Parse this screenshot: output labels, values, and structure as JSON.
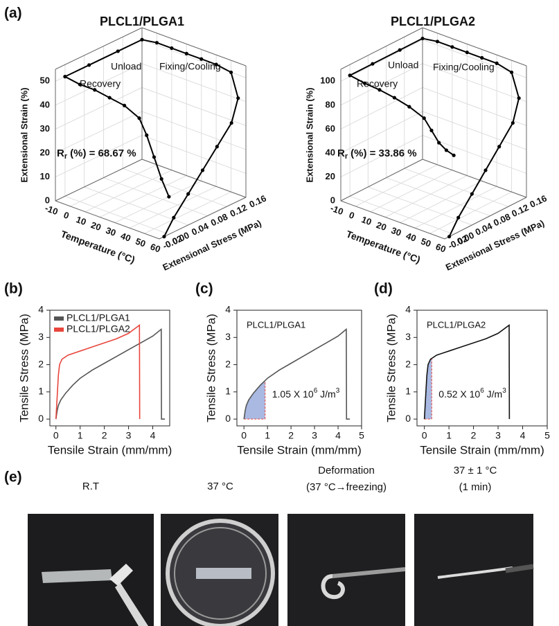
{
  "panel_labels": [
    "(a)",
    "(b)",
    "(c)",
    "(d)",
    "(e)"
  ],
  "chart_data": [
    {
      "type": "line3d",
      "title": "PLCL1/PLGA1",
      "xlabel": "Temperature (°C)",
      "ylabel": "Extensional Stress (MPa)",
      "zlabel": "Extensional Strain (%)",
      "x": [
        60,
        60,
        60,
        60,
        60,
        60,
        58,
        50,
        40,
        30,
        20,
        10,
        0,
        -10,
        -10,
        -10,
        -10,
        0,
        10,
        20,
        30,
        40,
        45,
        50,
        55,
        60
      ],
      "y": [
        -0.01,
        0.01,
        0.04,
        0.07,
        0.1,
        0.13,
        0.15,
        0.16,
        0.16,
        0.16,
        0.16,
        0.16,
        0.16,
        0.16,
        0.11,
        0.05,
        0.0,
        0.0,
        0.0,
        0.0,
        0.0,
        0.0,
        0.0,
        0.0,
        0.0,
        0.0
      ],
      "z": [
        0,
        6,
        13,
        20,
        27,
        34,
        42,
        50,
        51,
        51,
        51,
        51,
        51,
        50,
        50,
        50,
        50,
        49,
        49,
        48,
        47,
        44,
        38,
        30,
        22,
        15.7
      ],
      "xlim": [
        -10,
        60
      ],
      "xticks": [
        -10,
        0,
        10,
        20,
        30,
        40,
        50,
        60
      ],
      "ylim": [
        -0.02,
        0.16
      ],
      "yticks": [
        -0.02,
        {
          "value": 0,
          "label": "0.00"
        },
        0.04,
        0.08,
        0.12,
        0.16
      ],
      "zlim": [
        0,
        55
      ],
      "zticks": [
        0,
        10,
        20,
        30,
        40,
        50
      ],
      "color": "#000000",
      "grid": true,
      "annotations": [
        "Unload",
        "Fixing/Cooling",
        "Recovery"
      ],
      "recovery_ratio": {
        "symbol": "R",
        "subscript": "r",
        "text": "(%) = 68.67 %"
      }
    },
    {
      "type": "line3d",
      "title": "PLCL1/PLGA2",
      "xlabel": "Temperature (°C)",
      "ylabel": "Extensional Stress (MPa)",
      "zlabel": "Extensional Strain (%)",
      "x": [
        60,
        60,
        60,
        60,
        60,
        60,
        58,
        50,
        40,
        30,
        20,
        10,
        0,
        -10,
        -10,
        -10,
        -10,
        0,
        10,
        20,
        30,
        40,
        45,
        50,
        55,
        60
      ],
      "y": [
        -0.01,
        0.01,
        0.04,
        0.07,
        0.1,
        0.13,
        0.15,
        0.16,
        0.16,
        0.16,
        0.16,
        0.16,
        0.16,
        0.16,
        0.11,
        0.05,
        0.0,
        0.0,
        0.0,
        0.0,
        0.0,
        0.0,
        0.0,
        0.0,
        0.0,
        0.0
      ],
      "z": [
        0,
        12,
        26,
        40,
        54,
        68,
        84,
        100,
        103,
        103,
        103,
        103,
        103,
        101,
        101,
        101,
        101,
        99,
        98,
        96,
        93,
        88,
        80,
        72,
        68,
        66
      ],
      "xlim": [
        -10,
        60
      ],
      "xticks": [
        -10,
        0,
        10,
        20,
        30,
        40,
        50,
        60
      ],
      "ylim": [
        -0.02,
        0.16
      ],
      "yticks": [
        -0.02,
        {
          "value": 0,
          "label": "0.00"
        },
        0.04,
        0.08,
        0.12,
        0.16
      ],
      "zlim": [
        0,
        110
      ],
      "zticks": [
        0,
        20,
        40,
        60,
        80,
        100
      ],
      "color": "#000000",
      "grid": true,
      "annotations": [
        "Unload",
        "Fixing/Cooling",
        "Recovery"
      ],
      "recovery_ratio": {
        "symbol": "R",
        "subscript": "r",
        "text": "(%) = 33.86 %"
      }
    },
    {
      "type": "line",
      "xlabel": "Tensile Strain (mm/mm)",
      "ylabel": "Tensile Stress (MPa)",
      "xlim": [
        -0.25,
        4.7
      ],
      "xticks": [
        0,
        1,
        2,
        3,
        4
      ],
      "ylim": [
        -0.25,
        4
      ],
      "yticks": [
        0,
        1,
        2,
        3,
        4
      ],
      "legend": "upper left",
      "series": [
        {
          "name": "PLCL1/PLGA1",
          "color": "#555555",
          "x": [
            0,
            0.05,
            0.1,
            0.2,
            0.4,
            0.7,
            1,
            1.5,
            2,
            2.5,
            3,
            3.5,
            4,
            4.35,
            4.36,
            4.5
          ],
          "values": [
            0,
            0.3,
            0.5,
            0.7,
            0.95,
            1.25,
            1.5,
            1.8,
            2.05,
            2.3,
            2.55,
            2.8,
            3.05,
            3.3,
            0,
            0
          ]
        },
        {
          "name": "PLCL1/PLGA2",
          "color": "#e8453c",
          "x": [
            0,
            0.05,
            0.1,
            0.15,
            0.25,
            0.5,
            1,
            1.5,
            2,
            2.5,
            3,
            3.45,
            3.46
          ],
          "values": [
            0,
            0.8,
            1.6,
            2.0,
            2.2,
            2.35,
            2.5,
            2.65,
            2.8,
            2.95,
            3.15,
            3.45,
            0
          ]
        }
      ]
    },
    {
      "type": "line",
      "xlabel": "Tensile Strain (mm/mm)",
      "ylabel": "Tensile Stress (MPa)",
      "text": "PLCL1/PLGA1",
      "xlim": [
        -0.3,
        5
      ],
      "xticks": [
        0,
        1,
        2,
        3,
        4,
        5
      ],
      "ylim": [
        -0.25,
        4
      ],
      "yticks": [
        0,
        1,
        2,
        3,
        4
      ],
      "series": [
        {
          "color": "#555555",
          "x": [
            0,
            0.05,
            0.1,
            0.2,
            0.4,
            0.7,
            1,
            1.5,
            2,
            2.5,
            3,
            3.5,
            4,
            4.35,
            4.36,
            4.5
          ],
          "values": [
            0,
            0.3,
            0.5,
            0.7,
            0.95,
            1.25,
            1.5,
            1.8,
            2.05,
            2.3,
            2.55,
            2.8,
            3.05,
            3.3,
            0,
            0
          ]
        }
      ],
      "fill_xlim": [
        0,
        0.9
      ],
      "fill_color": "#a9b9e2",
      "energy_label": [
        "1.05 X 10",
        "6",
        " J/m",
        "3"
      ]
    },
    {
      "type": "line",
      "xlabel": "Tensile Strain (mm/mm)",
      "ylabel": "Tensile Stress (MPa)",
      "text": "PLCL1/PLGA2",
      "xlim": [
        -0.3,
        5
      ],
      "xticks": [
        0,
        1,
        2,
        3,
        4,
        5
      ],
      "ylim": [
        -0.25,
        4
      ],
      "yticks": [
        0,
        1,
        2,
        3,
        4
      ],
      "series": [
        {
          "color": "#111111",
          "x": [
            0,
            0.05,
            0.1,
            0.15,
            0.25,
            0.5,
            1,
            1.5,
            2,
            2.5,
            3,
            3.45,
            3.46
          ],
          "values": [
            0,
            0.8,
            1.6,
            2.0,
            2.2,
            2.35,
            2.5,
            2.65,
            2.8,
            2.95,
            3.15,
            3.45,
            0
          ]
        }
      ],
      "fill_xlim": [
        0,
        0.3
      ],
      "fill_color": "#a9b9e2",
      "energy_label": [
        "0.52 X 10",
        "6",
        " J/m",
        "3"
      ]
    }
  ],
  "photos": [
    {
      "caption": [
        "R.T"
      ]
    },
    {
      "caption": [
        "37 °C"
      ]
    },
    {
      "caption": [
        "Deformation",
        "(37 °C→freezing)"
      ]
    },
    {
      "caption": [
        "37 ± 1 °C",
        "(1 min)"
      ]
    }
  ]
}
